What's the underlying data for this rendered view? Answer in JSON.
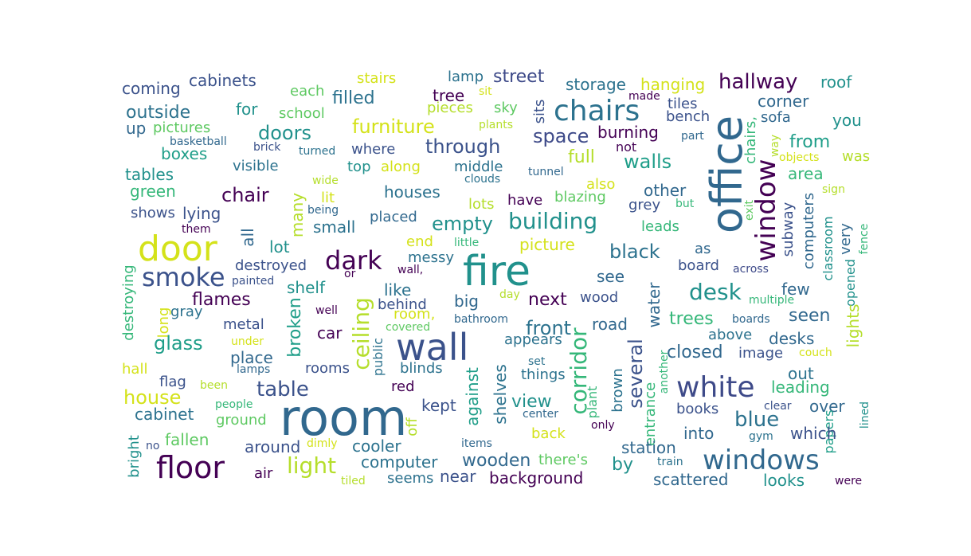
{
  "palette": {
    "c0": "#440154",
    "c1": "#3b528b",
    "c2": "#31688e",
    "c3": "#21918c",
    "c4": "#35b779",
    "c5": "#5ec962",
    "c6": "#b5de2b",
    "c7": "#d4e21a",
    "c8": "#3e4a89",
    "c9": "#2c728e",
    "c10": "#1f9e89",
    "c11": "#6ece58"
  },
  "words": [
    {
      "t": "coming"
    },
    {
      "t": "cabinets"
    },
    {
      "t": "each"
    },
    {
      "t": "stairs"
    },
    {
      "t": "lamp"
    },
    {
      "t": "street"
    },
    {
      "t": "storage"
    },
    {
      "t": "hanging"
    },
    {
      "t": "hallway"
    },
    {
      "t": "roof"
    },
    {
      "t": "outside"
    },
    {
      "t": "for"
    },
    {
      "t": "school"
    },
    {
      "t": "filled"
    },
    {
      "t": "tree"
    },
    {
      "t": "pieces"
    },
    {
      "t": "sky"
    },
    {
      "t": "sit"
    },
    {
      "t": "made"
    },
    {
      "t": "tiles"
    },
    {
      "t": "chairs"
    },
    {
      "t": "office"
    },
    {
      "t": "corner"
    },
    {
      "t": "up"
    },
    {
      "t": "pictures"
    },
    {
      "t": "doors"
    },
    {
      "t": "furniture"
    },
    {
      "t": "plants"
    },
    {
      "t": "bench"
    },
    {
      "t": "sofa"
    },
    {
      "t": "you"
    },
    {
      "t": "basketball"
    },
    {
      "t": "brick"
    },
    {
      "t": "turned"
    },
    {
      "t": "where"
    },
    {
      "t": "through"
    },
    {
      "t": "space"
    },
    {
      "t": "burning"
    },
    {
      "t": "part"
    },
    {
      "t": "chairs,"
    },
    {
      "t": "from"
    },
    {
      "t": "boxes"
    },
    {
      "t": "not"
    },
    {
      "t": "way"
    },
    {
      "t": "objects"
    },
    {
      "t": "was"
    },
    {
      "t": "full"
    },
    {
      "t": "sits"
    },
    {
      "t": "tables"
    },
    {
      "t": "visible"
    },
    {
      "t": "top"
    },
    {
      "t": "along"
    },
    {
      "t": "middle"
    },
    {
      "t": "walls"
    },
    {
      "t": "window"
    },
    {
      "t": "area"
    },
    {
      "t": "wide"
    },
    {
      "t": "tunnel"
    },
    {
      "t": "clouds"
    },
    {
      "t": "green"
    },
    {
      "t": "chair"
    },
    {
      "t": "houses"
    },
    {
      "t": "also"
    },
    {
      "t": "other"
    },
    {
      "t": "exit"
    },
    {
      "t": "sign"
    },
    {
      "t": "lit"
    },
    {
      "t": "blazing"
    },
    {
      "t": "shows"
    },
    {
      "t": "lying"
    },
    {
      "t": "being"
    },
    {
      "t": "lots"
    },
    {
      "t": "have"
    },
    {
      "t": "grey"
    },
    {
      "t": "but"
    },
    {
      "t": "empty"
    },
    {
      "t": "building"
    },
    {
      "t": "subway"
    },
    {
      "t": "computers"
    },
    {
      "t": "classroom"
    },
    {
      "t": "them"
    },
    {
      "t": "small"
    },
    {
      "t": "placed"
    },
    {
      "t": "leads"
    },
    {
      "t": "very"
    },
    {
      "t": "fence"
    },
    {
      "t": "door"
    },
    {
      "t": "all"
    },
    {
      "t": "many"
    },
    {
      "t": "lot"
    },
    {
      "t": "end"
    },
    {
      "t": "little"
    },
    {
      "t": "picture"
    },
    {
      "t": "as"
    },
    {
      "t": "black"
    },
    {
      "t": "dark"
    },
    {
      "t": "messy"
    },
    {
      "t": "board"
    },
    {
      "t": "across"
    },
    {
      "t": "destroyed"
    },
    {
      "t": "fire"
    },
    {
      "t": "or"
    },
    {
      "t": "wall,"
    },
    {
      "t": "opened"
    },
    {
      "t": "smoke"
    },
    {
      "t": "painted"
    },
    {
      "t": "see"
    },
    {
      "t": "shelf"
    },
    {
      "t": "like"
    },
    {
      "t": "desk"
    },
    {
      "t": "few"
    },
    {
      "t": "destroying"
    },
    {
      "t": "flames"
    },
    {
      "t": "big"
    },
    {
      "t": "next"
    },
    {
      "t": "day"
    },
    {
      "t": "wood"
    },
    {
      "t": "multiple"
    },
    {
      "t": "gray"
    },
    {
      "t": "well"
    },
    {
      "t": "behind"
    },
    {
      "t": "room,"
    },
    {
      "t": "bathroom"
    },
    {
      "t": "water"
    },
    {
      "t": "lights"
    },
    {
      "t": "long"
    },
    {
      "t": "metal"
    },
    {
      "t": "car"
    },
    {
      "t": "covered"
    },
    {
      "t": "front"
    },
    {
      "t": "road"
    },
    {
      "t": "trees"
    },
    {
      "t": "boards"
    },
    {
      "t": "seen"
    },
    {
      "t": "broken"
    },
    {
      "t": "ceiling"
    },
    {
      "t": "glass"
    },
    {
      "t": "under"
    },
    {
      "t": "wall"
    },
    {
      "t": "appears"
    },
    {
      "t": "above"
    },
    {
      "t": "desks"
    },
    {
      "t": "public"
    },
    {
      "t": "corridor"
    },
    {
      "t": "closed"
    },
    {
      "t": "image"
    },
    {
      "t": "couch"
    },
    {
      "t": "place"
    },
    {
      "t": "lamps"
    },
    {
      "t": "rooms"
    },
    {
      "t": "blinds"
    },
    {
      "t": "set"
    },
    {
      "t": "several"
    },
    {
      "t": "another"
    },
    {
      "t": "hall"
    },
    {
      "t": "flag"
    },
    {
      "t": "been"
    },
    {
      "t": "things"
    },
    {
      "t": "out"
    },
    {
      "t": "table"
    },
    {
      "t": "red"
    },
    {
      "t": "white"
    },
    {
      "t": "leading"
    },
    {
      "t": "house"
    },
    {
      "t": "against"
    },
    {
      "t": "shelves"
    },
    {
      "t": "plant"
    },
    {
      "t": "brown"
    },
    {
      "t": "people"
    },
    {
      "t": "room"
    },
    {
      "t": "view"
    },
    {
      "t": "entrance"
    },
    {
      "t": "clear"
    },
    {
      "t": "over"
    },
    {
      "t": "cabinet"
    },
    {
      "t": "kept"
    },
    {
      "t": "books"
    },
    {
      "t": "blue"
    },
    {
      "t": "papers"
    },
    {
      "t": "ground"
    },
    {
      "t": "center"
    },
    {
      "t": "only"
    },
    {
      "t": "lined"
    },
    {
      "t": "into"
    },
    {
      "t": "which"
    },
    {
      "t": "bright"
    },
    {
      "t": "fallen"
    },
    {
      "t": "off"
    },
    {
      "t": "back"
    },
    {
      "t": "gym"
    },
    {
      "t": "no"
    },
    {
      "t": "around"
    },
    {
      "t": "dimly"
    },
    {
      "t": "cooler"
    },
    {
      "t": "items"
    },
    {
      "t": "station"
    },
    {
      "t": "floor"
    },
    {
      "t": "light"
    },
    {
      "t": "computer"
    },
    {
      "t": "wooden"
    },
    {
      "t": "there's"
    },
    {
      "t": "by"
    },
    {
      "t": "windows"
    },
    {
      "t": "train"
    },
    {
      "t": "air"
    },
    {
      "t": "seems"
    },
    {
      "t": "near"
    },
    {
      "t": "background"
    },
    {
      "t": "scattered"
    },
    {
      "t": "looks"
    },
    {
      "t": "tiled"
    },
    {
      "t": "were"
    }
  ]
}
